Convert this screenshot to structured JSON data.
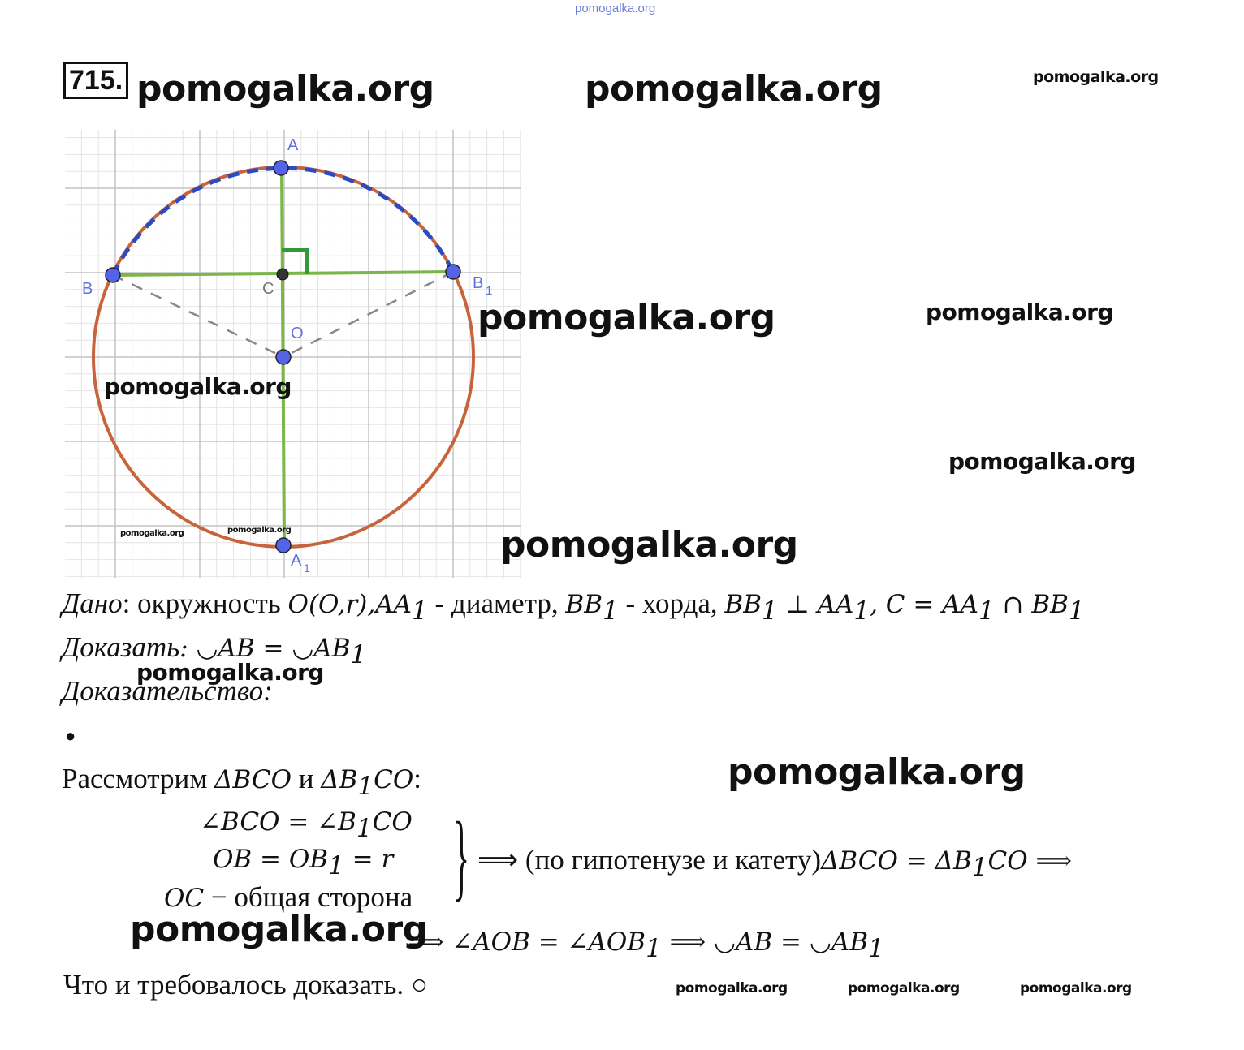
{
  "watermarks": {
    "top": "pomogalka.org",
    "text": "pomogalka.org"
  },
  "problem_number": "715.",
  "figure": {
    "points": {
      "A": "A",
      "B": "B",
      "B1": "B",
      "B1_sub": "1",
      "C": "C",
      "O": "O",
      "A1": "A",
      "A1_sub": "1"
    },
    "colors": {
      "circle": "#c8643c",
      "dash_arc": "#2b4bc0",
      "segments": "#7ab648",
      "point": "#5563e8",
      "grid": "#cccccc",
      "right_angle": "#2e9a3a"
    }
  },
  "given": {
    "label": "Дано",
    "text": ": окружность ",
    "circle": "O(O,r),AA",
    "t1": " - диаметр, ",
    "bb": "BB",
    "t2": " - хорда, ",
    "perp": "BB",
    "perp2": " ⊥ AA",
    "c_eq": ", C = AA",
    "cap": " ∩ BB",
    "sub": "1"
  },
  "prove": {
    "label": "Доказать",
    "text": ": ◡AB = ◡AB",
    "sub": "1"
  },
  "proof_label": "Доказательство:",
  "bullet": "●",
  "consider": {
    "text": "Рассмотрим ",
    "t1": "ΔBCO",
    "and": " и ",
    "t2": "ΔB",
    "t2b": "CO",
    "colon": ":",
    "sub": "1"
  },
  "system": {
    "l1a": "∠BCO = ∠B",
    "l1b": "CO",
    "l2a": "OB = OB",
    "l2b": " = r",
    "l3a": "OC",
    "l3b": " − общая сторона",
    "brace": "}",
    "result_a": "⟹ (по гипотенузе и катету)",
    "result_b": "ΔBCO = ΔB",
    "result_c": "CO ⟹",
    "sub": "1"
  },
  "conclusion": {
    "a": "⟹ ∠AOB = ∠AOB",
    "b": " ⟹ ◡AB = ◡AB",
    "sub": "1"
  },
  "qed": "Что и требовалось доказать. ○"
}
